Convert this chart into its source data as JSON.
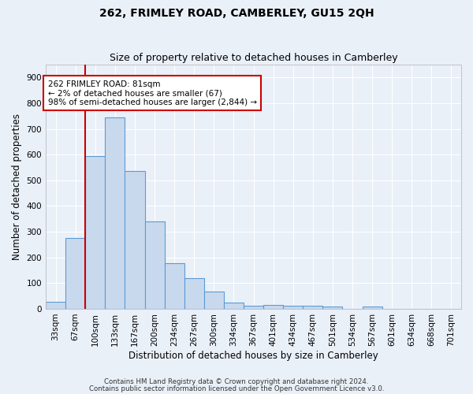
{
  "title": "262, FRIMLEY ROAD, CAMBERLEY, GU15 2QH",
  "subtitle": "Size of property relative to detached houses in Camberley",
  "xlabel": "Distribution of detached houses by size in Camberley",
  "ylabel": "Number of detached properties",
  "categories": [
    "33sqm",
    "67sqm",
    "100sqm",
    "133sqm",
    "167sqm",
    "200sqm",
    "234sqm",
    "267sqm",
    "300sqm",
    "334sqm",
    "367sqm",
    "401sqm",
    "434sqm",
    "467sqm",
    "501sqm",
    "534sqm",
    "567sqm",
    "601sqm",
    "634sqm",
    "668sqm",
    "701sqm"
  ],
  "values": [
    27,
    275,
    595,
    745,
    537,
    340,
    178,
    120,
    68,
    25,
    13,
    15,
    12,
    11,
    10,
    0,
    9,
    0,
    0,
    0,
    0
  ],
  "bar_color": "#c9d9ed",
  "bar_edge_color": "#5b9bd5",
  "vline_x": 1.5,
  "vline_color": "#cc0000",
  "annotation_text": "262 FRIMLEY ROAD: 81sqm\n← 2% of detached houses are smaller (67)\n98% of semi-detached houses are larger (2,844) →",
  "annotation_box_color": "#ffffff",
  "annotation_box_edge_color": "#cc0000",
  "background_color": "#eaf0f8",
  "plot_background_color": "#eaf0f8",
  "grid_color": "#ffffff",
  "title_fontsize": 10,
  "subtitle_fontsize": 9,
  "tick_fontsize": 7.5,
  "ylabel_fontsize": 8.5,
  "xlabel_fontsize": 8.5,
  "annotation_fontsize": 7.5,
  "ylim": [
    0,
    950
  ],
  "yticks": [
    0,
    100,
    200,
    300,
    400,
    500,
    600,
    700,
    800,
    900
  ],
  "footer_line1": "Contains HM Land Registry data © Crown copyright and database right 2024.",
  "footer_line2": "Contains public sector information licensed under the Open Government Licence v3.0."
}
